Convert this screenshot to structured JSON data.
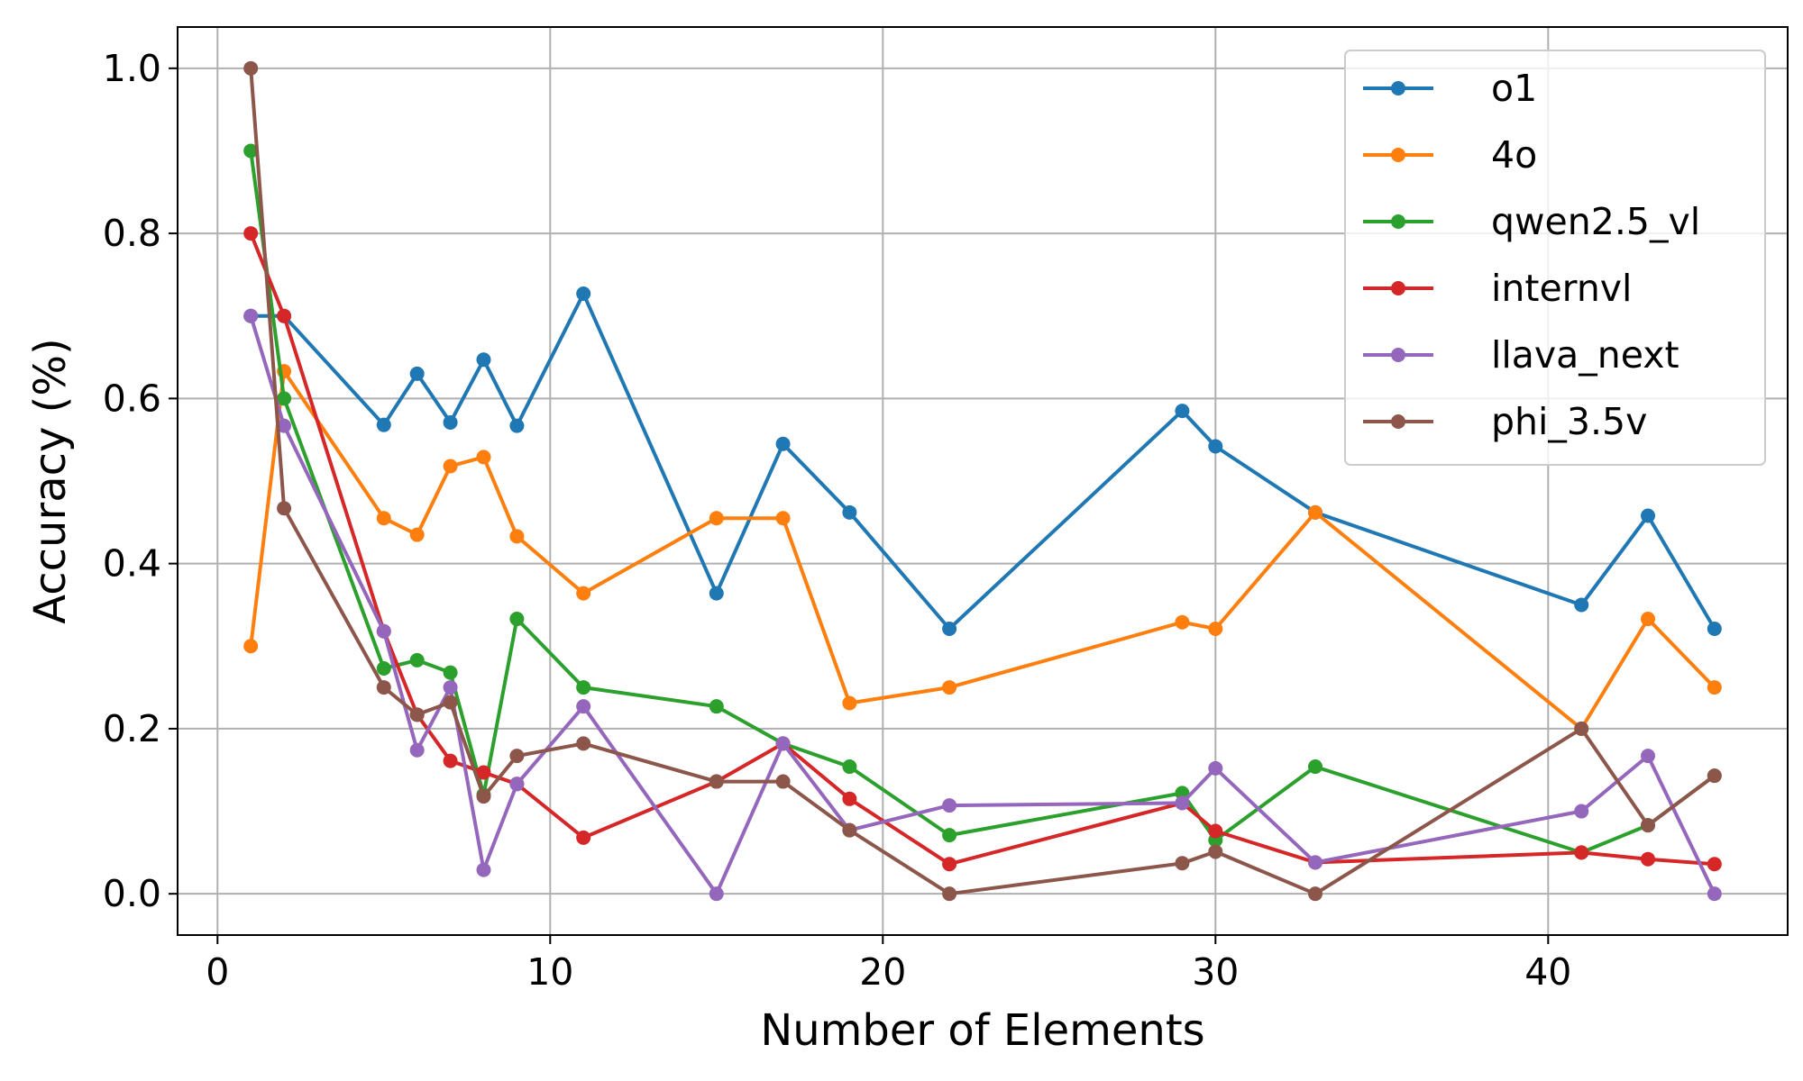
{
  "chart_data": {
    "type": "line",
    "title": "",
    "xlabel": "Number of Elements",
    "ylabel": "Accuracy (%)",
    "xlim": [
      -1.2,
      47.2
    ],
    "ylim": [
      -0.05,
      1.05
    ],
    "xticks": [
      0,
      10,
      20,
      30,
      40
    ],
    "yticks": [
      0.0,
      0.2,
      0.4,
      0.6,
      0.8,
      1.0
    ],
    "xtick_labels": [
      "0",
      "10",
      "20",
      "30",
      "40"
    ],
    "ytick_labels": [
      "0.0",
      "0.2",
      "0.4",
      "0.6",
      "0.8",
      "1.0"
    ],
    "grid": true,
    "legend_position": "top-right",
    "x": [
      1,
      2,
      5,
      6,
      7,
      8,
      9,
      11,
      15,
      17,
      19,
      22,
      29,
      30,
      33,
      41,
      43,
      45
    ],
    "series": [
      {
        "name": "o1",
        "color": "#1f77b4",
        "values": [
          0.7,
          0.7,
          0.568,
          0.63,
          0.571,
          0.647,
          0.567,
          0.727,
          0.364,
          0.545,
          0.462,
          0.321,
          0.585,
          0.542,
          0.462,
          0.35,
          0.458,
          0.321
        ]
      },
      {
        "name": "4o",
        "color": "#ff7f0e",
        "values": [
          0.3,
          0.633,
          0.455,
          0.435,
          0.518,
          0.529,
          0.433,
          0.364,
          0.455,
          0.455,
          0.231,
          0.25,
          0.329,
          0.321,
          0.462,
          0.2,
          0.333,
          0.25
        ]
      },
      {
        "name": "qwen2.5_vl",
        "color": "#2ca02c",
        "values": [
          0.9,
          0.6,
          0.273,
          0.283,
          0.268,
          0.12,
          0.333,
          0.25,
          0.227,
          0.182,
          0.154,
          0.071,
          0.122,
          0.065,
          0.154,
          0.05,
          0.083,
          0.143
        ]
      },
      {
        "name": "internvl",
        "color": "#d62728",
        "values": [
          0.8,
          0.7,
          0.318,
          0.217,
          0.161,
          0.147,
          0.133,
          0.068,
          0.136,
          0.182,
          0.115,
          0.036,
          0.11,
          0.076,
          0.038,
          0.05,
          0.042,
          0.036
        ]
      },
      {
        "name": "llava_next",
        "color": "#9467bd",
        "values": [
          0.7,
          0.567,
          0.318,
          0.174,
          0.25,
          0.029,
          0.133,
          0.227,
          0.0,
          0.182,
          0.077,
          0.107,
          0.11,
          0.152,
          0.038,
          0.1,
          0.167,
          0.0
        ]
      },
      {
        "name": "phi_3.5v",
        "color": "#8c564b",
        "values": [
          1.0,
          0.467,
          0.25,
          0.217,
          0.232,
          0.118,
          0.167,
          0.182,
          0.136,
          0.136,
          0.077,
          0.0,
          0.037,
          0.051,
          0.0,
          0.2,
          0.083,
          0.143
        ]
      }
    ]
  }
}
